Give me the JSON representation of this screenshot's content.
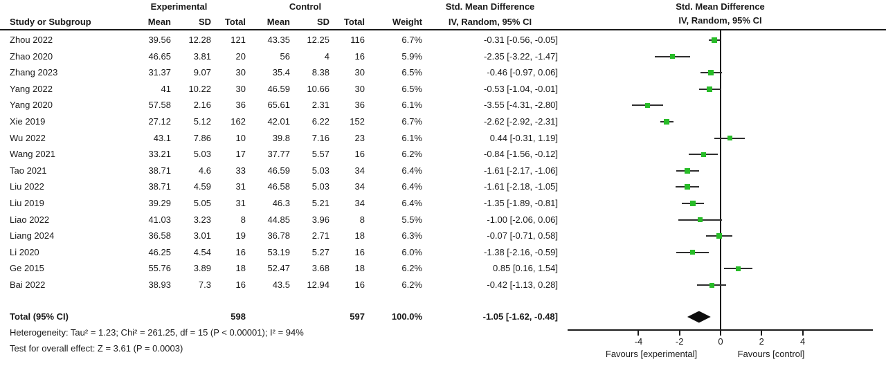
{
  "header": {
    "study_col": "Study or Subgroup",
    "group_experimental": "Experimental",
    "group_control": "Control",
    "mean": "Mean",
    "sd": "SD",
    "total": "Total",
    "weight": "Weight",
    "smd_title": "Std. Mean Difference",
    "method": "IV, Random, 95% CI"
  },
  "chart_data": {
    "type": "forest",
    "title": "Std. Mean Difference",
    "method_label": "IV, Random, 95% CI",
    "effect_measure": "Std. Mean Difference",
    "model": "IV, Random, 95% CI",
    "marker_color": "#28bc28",
    "x_axis": {
      "ticks": [
        -4,
        -2,
        0,
        2,
        4
      ],
      "range": [
        -7.4,
        7.4
      ],
      "favours_left": "Favours [experimental]",
      "favours_right": "Favours [control]"
    },
    "studies": [
      {
        "name": "Zhou 2022",
        "mean1": "39.56",
        "sd1": "12.28",
        "n1": "121",
        "mean2": "43.35",
        "sd2": "12.25",
        "n2": "116",
        "weight": "6.7%",
        "ci_text": "-0.31 [-0.56, -0.05]",
        "smd": -0.31,
        "lo": -0.56,
        "hi": -0.05
      },
      {
        "name": "Zhao 2020",
        "mean1": "46.65",
        "sd1": "3.81",
        "n1": "20",
        "mean2": "56",
        "sd2": "4",
        "n2": "16",
        "weight": "5.9%",
        "ci_text": "-2.35 [-3.22, -1.47]",
        "smd": -2.35,
        "lo": -3.22,
        "hi": -1.47
      },
      {
        "name": "Zhang 2023",
        "mean1": "31.37",
        "sd1": "9.07",
        "n1": "30",
        "mean2": "35.4",
        "sd2": "8.38",
        "n2": "30",
        "weight": "6.5%",
        "ci_text": "-0.46 [-0.97, 0.06]",
        "smd": -0.46,
        "lo": -0.97,
        "hi": 0.06
      },
      {
        "name": "Yang 2022",
        "mean1": "41",
        "sd1": "10.22",
        "n1": "30",
        "mean2": "46.59",
        "sd2": "10.66",
        "n2": "30",
        "weight": "6.5%",
        "ci_text": "-0.53 [-1.04, -0.01]",
        "smd": -0.53,
        "lo": -1.04,
        "hi": -0.01
      },
      {
        "name": "Yang 2020",
        "mean1": "57.58",
        "sd1": "2.16",
        "n1": "36",
        "mean2": "65.61",
        "sd2": "2.31",
        "n2": "36",
        "weight": "6.1%",
        "ci_text": "-3.55 [-4.31, -2.80]",
        "smd": -3.55,
        "lo": -4.31,
        "hi": -2.8
      },
      {
        "name": "Xie 2019",
        "mean1": "27.12",
        "sd1": "5.12",
        "n1": "162",
        "mean2": "42.01",
        "sd2": "6.22",
        "n2": "152",
        "weight": "6.7%",
        "ci_text": "-2.62 [-2.92, -2.31]",
        "smd": -2.62,
        "lo": -2.92,
        "hi": -2.31
      },
      {
        "name": "Wu 2022",
        "mean1": "43.1",
        "sd1": "7.86",
        "n1": "10",
        "mean2": "39.8",
        "sd2": "7.16",
        "n2": "23",
        "weight": "6.1%",
        "ci_text": "0.44 [-0.31, 1.19]",
        "smd": 0.44,
        "lo": -0.31,
        "hi": 1.19
      },
      {
        "name": "Wang 2021",
        "mean1": "33.21",
        "sd1": "5.03",
        "n1": "17",
        "mean2": "37.77",
        "sd2": "5.57",
        "n2": "16",
        "weight": "6.2%",
        "ci_text": "-0.84 [-1.56, -0.12]",
        "smd": -0.84,
        "lo": -1.56,
        "hi": -0.12
      },
      {
        "name": "Tao 2021",
        "mean1": "38.71",
        "sd1": "4.6",
        "n1": "33",
        "mean2": "46.59",
        "sd2": "5.03",
        "n2": "34",
        "weight": "6.4%",
        "ci_text": "-1.61 [-2.17, -1.06]",
        "smd": -1.61,
        "lo": -2.17,
        "hi": -1.06
      },
      {
        "name": "Liu 2022",
        "mean1": "38.71",
        "sd1": "4.59",
        "n1": "31",
        "mean2": "46.58",
        "sd2": "5.03",
        "n2": "34",
        "weight": "6.4%",
        "ci_text": "-1.61 [-2.18, -1.05]",
        "smd": -1.61,
        "lo": -2.18,
        "hi": -1.05
      },
      {
        "name": "Liu 2019",
        "mean1": "39.29",
        "sd1": "5.05",
        "n1": "31",
        "mean2": "46.3",
        "sd2": "5.21",
        "n2": "34",
        "weight": "6.4%",
        "ci_text": "-1.35 [-1.89, -0.81]",
        "smd": -1.35,
        "lo": -1.89,
        "hi": -0.81
      },
      {
        "name": "Liao 2022",
        "mean1": "41.03",
        "sd1": "3.23",
        "n1": "8",
        "mean2": "44.85",
        "sd2": "3.96",
        "n2": "8",
        "weight": "5.5%",
        "ci_text": "-1.00 [-2.06, 0.06]",
        "smd": -1.0,
        "lo": -2.06,
        "hi": 0.06
      },
      {
        "name": "Liang 2024",
        "mean1": "36.58",
        "sd1": "3.01",
        "n1": "19",
        "mean2": "36.78",
        "sd2": "2.71",
        "n2": "18",
        "weight": "6.3%",
        "ci_text": "-0.07 [-0.71, 0.58]",
        "smd": -0.07,
        "lo": -0.71,
        "hi": 0.58
      },
      {
        "name": "Li 2020",
        "mean1": "46.25",
        "sd1": "4.54",
        "n1": "16",
        "mean2": "53.19",
        "sd2": "5.27",
        "n2": "16",
        "weight": "6.0%",
        "ci_text": "-1.38 [-2.16, -0.59]",
        "smd": -1.38,
        "lo": -2.16,
        "hi": -0.59
      },
      {
        "name": "Ge 2015",
        "mean1": "55.76",
        "sd1": "3.89",
        "n1": "18",
        "mean2": "52.47",
        "sd2": "3.68",
        "n2": "18",
        "weight": "6.2%",
        "ci_text": "0.85 [0.16, 1.54]",
        "smd": 0.85,
        "lo": 0.16,
        "hi": 1.54
      },
      {
        "name": "Bai 2022",
        "mean1": "38.93",
        "sd1": "7.3",
        "n1": "16",
        "mean2": "43.5",
        "sd2": "12.94",
        "n2": "16",
        "weight": "6.2%",
        "ci_text": "-0.42 [-1.13, 0.28]",
        "smd": -0.42,
        "lo": -1.13,
        "hi": 0.28
      }
    ],
    "total": {
      "label": "Total (95% CI)",
      "n1": "598",
      "n2": "597",
      "weight": "100.0%",
      "ci_text": "-1.05 [-1.62, -0.48]",
      "smd": -1.05,
      "lo": -1.62,
      "hi": -0.48
    },
    "heterogeneity": "Heterogeneity: Tau² = 1.23; Chi² = 261.25, df = 15 (P < 0.00001); I² = 94%",
    "overall_effect": "Test for overall effect: Z = 3.61 (P = 0.0003)"
  }
}
